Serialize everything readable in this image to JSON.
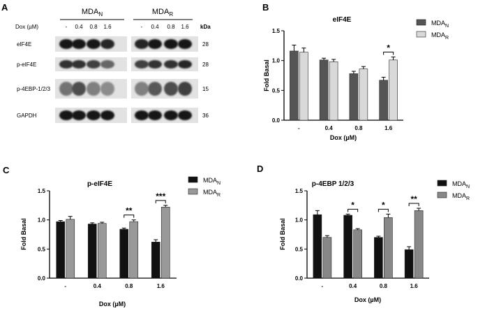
{
  "blot": {
    "panel_letter": "A",
    "groups": [
      {
        "base": "MDA",
        "sub": "N"
      },
      {
        "base": "MDA",
        "sub": "R"
      }
    ],
    "dose_label": "Dox (µM)",
    "doses": [
      "-",
      "0.4",
      "0.8",
      "1.6"
    ],
    "kda_label": "kDa",
    "rows": [
      {
        "label": "eIF4E",
        "kda": "28"
      },
      {
        "label": "p-eIF4E",
        "kda": "28"
      },
      {
        "label": "p-4EBP-1/2/3",
        "kda": "15"
      },
      {
        "label": "GAPDH",
        "kda": "36"
      }
    ],
    "band_intensity": [
      [
        0.9,
        0.9,
        0.9,
        0.85,
        0.85,
        0.9,
        0.9,
        0.9
      ],
      [
        0.8,
        0.8,
        0.75,
        0.6,
        0.75,
        0.8,
        0.8,
        0.85
      ],
      [
        0.55,
        0.7,
        0.5,
        0.45,
        0.5,
        0.65,
        0.7,
        0.75
      ],
      [
        0.9,
        0.9,
        0.9,
        0.9,
        0.9,
        0.9,
        0.9,
        0.9
      ]
    ]
  },
  "legend_sub": [
    "N",
    "R"
  ],
  "chart_data": [
    {
      "panel_letter": "B",
      "type": "bar",
      "title": "eIF4E",
      "xlabel": "Dox (µM)",
      "ylabel": "Fold Basal",
      "categories": [
        "-",
        "0.4",
        "0.8",
        "1.6"
      ],
      "ylim": [
        0,
        1.5
      ],
      "yticks": [
        "0.0",
        "0.5",
        "1.0",
        "1.5"
      ],
      "series": [
        {
          "name": "MDA",
          "color": "#555555",
          "values": [
            1.16,
            1.01,
            0.78,
            0.67
          ],
          "errors": [
            0.1,
            0.03,
            0.04,
            0.05
          ]
        },
        {
          "name": "MDA",
          "color": "#d9d9d9",
          "values": [
            1.14,
            0.98,
            0.86,
            1.01
          ],
          "errors": [
            0.07,
            0.04,
            0.04,
            0.05
          ]
        }
      ],
      "legend_position": "top-right",
      "significance": [
        {
          "category": "1.6",
          "label": "*"
        }
      ]
    },
    {
      "panel_letter": "C",
      "type": "bar",
      "title": "p-eIF4E",
      "xlabel": "Dox (µM)",
      "ylabel": "Fold Basal",
      "categories": [
        "-",
        "0.4",
        "0.8",
        "1.6"
      ],
      "ylim": [
        0,
        1.5
      ],
      "yticks": [
        "0.0",
        "0.5",
        "1.0",
        "1.5"
      ],
      "series": [
        {
          "name": "MDA",
          "color": "#111111",
          "values": [
            0.97,
            0.93,
            0.84,
            0.62
          ],
          "errors": [
            0.02,
            0.02,
            0.02,
            0.04
          ]
        },
        {
          "name": "MDA",
          "color": "#999999",
          "values": [
            1.01,
            0.94,
            0.97,
            1.22
          ],
          "errors": [
            0.05,
            0.02,
            0.03,
            0.03
          ]
        }
      ],
      "legend_position": "top-right",
      "significance": [
        {
          "category": "0.8",
          "label": "**"
        },
        {
          "category": "1.6",
          "label": "***"
        }
      ]
    },
    {
      "panel_letter": "D",
      "type": "bar",
      "title": "p-4EBP 1/2/3",
      "xlabel": "Dox (µM)",
      "ylabel": "Fold Basal",
      "categories": [
        "-",
        "0.4",
        "0.8",
        "1.6"
      ],
      "ylim": [
        0,
        1.5
      ],
      "yticks": [
        "0.0",
        "0.5",
        "1.0",
        "1.5"
      ],
      "series": [
        {
          "name": "MDA",
          "color": "#111111",
          "values": [
            1.09,
            1.08,
            0.7,
            0.49
          ],
          "errors": [
            0.07,
            0.02,
            0.02,
            0.05
          ]
        },
        {
          "name": "MDA",
          "color": "#888888",
          "values": [
            0.7,
            0.83,
            1.04,
            1.16
          ],
          "errors": [
            0.03,
            0.02,
            0.06,
            0.04
          ]
        }
      ],
      "legend_position": "top-right",
      "significance": [
        {
          "category": "0.4",
          "label": "*"
        },
        {
          "category": "0.8",
          "label": "*"
        },
        {
          "category": "1.6",
          "label": "**"
        }
      ]
    }
  ]
}
